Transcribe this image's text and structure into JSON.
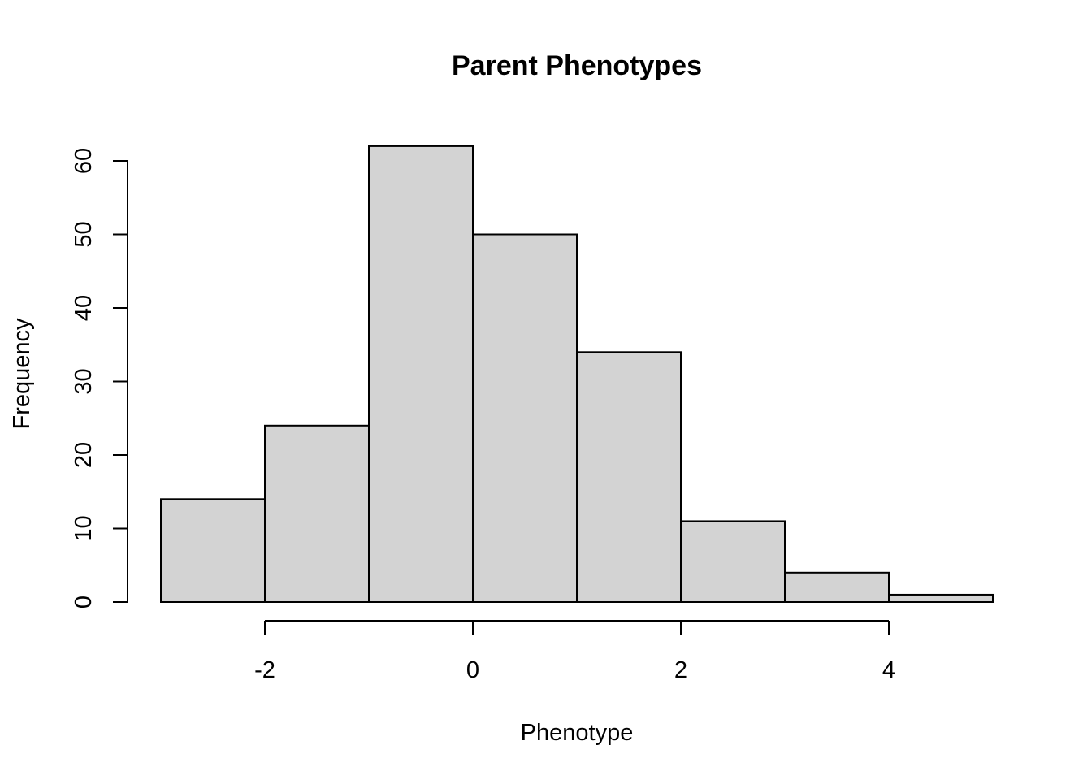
{
  "chart_data": {
    "type": "bar",
    "title": "Parent Phenotypes",
    "xlabel": "Phenotype",
    "ylabel": "Frequency",
    "bins": [
      {
        "x0": -3,
        "x1": -2,
        "count": 14
      },
      {
        "x0": -2,
        "x1": -1,
        "count": 24
      },
      {
        "x0": -1,
        "x1": 0,
        "count": 62
      },
      {
        "x0": 0,
        "x1": 1,
        "count": 50
      },
      {
        "x0": 1,
        "x1": 2,
        "count": 34
      },
      {
        "x0": 2,
        "x1": 3,
        "count": 11
      },
      {
        "x0": 3,
        "x1": 4,
        "count": 4
      },
      {
        "x0": 4,
        "x1": 5,
        "count": 1
      }
    ],
    "x_ticks": [
      -2,
      0,
      2,
      4
    ],
    "y_ticks": [
      0,
      10,
      20,
      30,
      40,
      50,
      60
    ],
    "xlim": [
      -3,
      5
    ],
    "ylim": [
      0,
      62
    ],
    "bar_color": "#d3d3d3",
    "grid": false
  }
}
